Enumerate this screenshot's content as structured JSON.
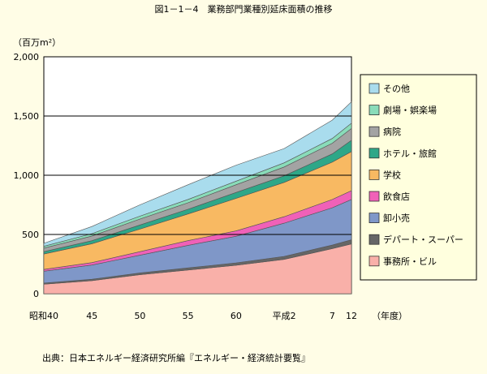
{
  "figure": {
    "title": "図1－1－4　業務部門業種別延床面積の推移",
    "source": "出典：日本エネルギー経済研究所編『エネルギー・経済統計要覧』"
  },
  "chart_data": {
    "type": "area",
    "stacked": true,
    "ylabel": "（百万m²）",
    "xlabel": "（年度）",
    "ylim": [
      0,
      2000
    ],
    "yticks": [
      "0",
      "500",
      "1,000",
      "1,500",
      "2,000"
    ],
    "xticks": [
      "昭和40",
      "45",
      "50",
      "55",
      "60",
      "平成2",
      "7",
      "12"
    ],
    "x": [
      40,
      45,
      50,
      55,
      60,
      65,
      70,
      72
    ],
    "grid": true,
    "legend_position": "right",
    "series": [
      {
        "name": "事務所・ビル",
        "color": "#f9b0a9",
        "values": [
          80,
          110,
          160,
          200,
          240,
          290,
          380,
          420
        ]
      },
      {
        "name": "デパート・スーパー",
        "color": "#666666",
        "values": [
          10,
          12,
          15,
          18,
          20,
          25,
          30,
          35
        ]
      },
      {
        "name": "卸小売",
        "color": "#7f97c8",
        "values": [
          100,
          120,
          150,
          190,
          225,
          280,
          315,
          340
        ]
      },
      {
        "name": "飲食店",
        "color": "#f061b8",
        "values": [
          15,
          20,
          30,
          40,
          45,
          55,
          70,
          75
        ]
      },
      {
        "name": "学校",
        "color": "#f8b962",
        "values": [
          130,
          160,
          190,
          225,
          275,
          290,
          315,
          330
        ]
      },
      {
        "name": "ホテル・旅館",
        "color": "#2ea788",
        "values": [
          20,
          25,
          35,
          40,
          50,
          55,
          70,
          95
        ]
      },
      {
        "name": "病院",
        "color": "#a3a3a3",
        "values": [
          30,
          40,
          50,
          55,
          65,
          75,
          90,
          100
        ]
      },
      {
        "name": "劇場・娯楽場",
        "color": "#89dcb9",
        "values": [
          15,
          20,
          25,
          28,
          30,
          35,
          40,
          45
        ]
      },
      {
        "name": "その他",
        "color": "#a9dced",
        "values": [
          25,
          60,
          95,
          124,
          135,
          120,
          155,
          180
        ]
      }
    ]
  }
}
